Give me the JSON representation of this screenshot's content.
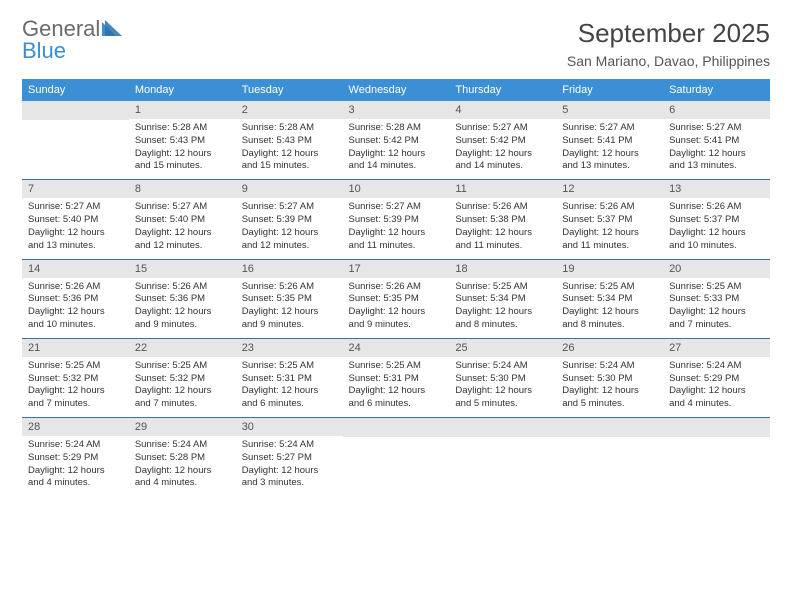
{
  "logo": {
    "general": "General",
    "blue": "Blue"
  },
  "title": "September 2025",
  "location": "San Mariano, Davao, Philippines",
  "colors": {
    "header_bg": "#3b8fd4",
    "header_text": "#ffffff",
    "daynum_bg": "#e6e6e6",
    "row_border": "#3b6fa8",
    "text": "#333333",
    "logo_gray": "#6b6b6b",
    "logo_blue": "#3b8fd4"
  },
  "weekdays": [
    "Sunday",
    "Monday",
    "Tuesday",
    "Wednesday",
    "Thursday",
    "Friday",
    "Saturday"
  ],
  "weeks": [
    [
      null,
      {
        "num": "1",
        "sunrise": "Sunrise: 5:28 AM",
        "sunset": "Sunset: 5:43 PM",
        "daylight": "Daylight: 12 hours and 15 minutes."
      },
      {
        "num": "2",
        "sunrise": "Sunrise: 5:28 AM",
        "sunset": "Sunset: 5:43 PM",
        "daylight": "Daylight: 12 hours and 15 minutes."
      },
      {
        "num": "3",
        "sunrise": "Sunrise: 5:28 AM",
        "sunset": "Sunset: 5:42 PM",
        "daylight": "Daylight: 12 hours and 14 minutes."
      },
      {
        "num": "4",
        "sunrise": "Sunrise: 5:27 AM",
        "sunset": "Sunset: 5:42 PM",
        "daylight": "Daylight: 12 hours and 14 minutes."
      },
      {
        "num": "5",
        "sunrise": "Sunrise: 5:27 AM",
        "sunset": "Sunset: 5:41 PM",
        "daylight": "Daylight: 12 hours and 13 minutes."
      },
      {
        "num": "6",
        "sunrise": "Sunrise: 5:27 AM",
        "sunset": "Sunset: 5:41 PM",
        "daylight": "Daylight: 12 hours and 13 minutes."
      }
    ],
    [
      {
        "num": "7",
        "sunrise": "Sunrise: 5:27 AM",
        "sunset": "Sunset: 5:40 PM",
        "daylight": "Daylight: 12 hours and 13 minutes."
      },
      {
        "num": "8",
        "sunrise": "Sunrise: 5:27 AM",
        "sunset": "Sunset: 5:40 PM",
        "daylight": "Daylight: 12 hours and 12 minutes."
      },
      {
        "num": "9",
        "sunrise": "Sunrise: 5:27 AM",
        "sunset": "Sunset: 5:39 PM",
        "daylight": "Daylight: 12 hours and 12 minutes."
      },
      {
        "num": "10",
        "sunrise": "Sunrise: 5:27 AM",
        "sunset": "Sunset: 5:39 PM",
        "daylight": "Daylight: 12 hours and 11 minutes."
      },
      {
        "num": "11",
        "sunrise": "Sunrise: 5:26 AM",
        "sunset": "Sunset: 5:38 PM",
        "daylight": "Daylight: 12 hours and 11 minutes."
      },
      {
        "num": "12",
        "sunrise": "Sunrise: 5:26 AM",
        "sunset": "Sunset: 5:37 PM",
        "daylight": "Daylight: 12 hours and 11 minutes."
      },
      {
        "num": "13",
        "sunrise": "Sunrise: 5:26 AM",
        "sunset": "Sunset: 5:37 PM",
        "daylight": "Daylight: 12 hours and 10 minutes."
      }
    ],
    [
      {
        "num": "14",
        "sunrise": "Sunrise: 5:26 AM",
        "sunset": "Sunset: 5:36 PM",
        "daylight": "Daylight: 12 hours and 10 minutes."
      },
      {
        "num": "15",
        "sunrise": "Sunrise: 5:26 AM",
        "sunset": "Sunset: 5:36 PM",
        "daylight": "Daylight: 12 hours and 9 minutes."
      },
      {
        "num": "16",
        "sunrise": "Sunrise: 5:26 AM",
        "sunset": "Sunset: 5:35 PM",
        "daylight": "Daylight: 12 hours and 9 minutes."
      },
      {
        "num": "17",
        "sunrise": "Sunrise: 5:26 AM",
        "sunset": "Sunset: 5:35 PM",
        "daylight": "Daylight: 12 hours and 9 minutes."
      },
      {
        "num": "18",
        "sunrise": "Sunrise: 5:25 AM",
        "sunset": "Sunset: 5:34 PM",
        "daylight": "Daylight: 12 hours and 8 minutes."
      },
      {
        "num": "19",
        "sunrise": "Sunrise: 5:25 AM",
        "sunset": "Sunset: 5:34 PM",
        "daylight": "Daylight: 12 hours and 8 minutes."
      },
      {
        "num": "20",
        "sunrise": "Sunrise: 5:25 AM",
        "sunset": "Sunset: 5:33 PM",
        "daylight": "Daylight: 12 hours and 7 minutes."
      }
    ],
    [
      {
        "num": "21",
        "sunrise": "Sunrise: 5:25 AM",
        "sunset": "Sunset: 5:32 PM",
        "daylight": "Daylight: 12 hours and 7 minutes."
      },
      {
        "num": "22",
        "sunrise": "Sunrise: 5:25 AM",
        "sunset": "Sunset: 5:32 PM",
        "daylight": "Daylight: 12 hours and 7 minutes."
      },
      {
        "num": "23",
        "sunrise": "Sunrise: 5:25 AM",
        "sunset": "Sunset: 5:31 PM",
        "daylight": "Daylight: 12 hours and 6 minutes."
      },
      {
        "num": "24",
        "sunrise": "Sunrise: 5:25 AM",
        "sunset": "Sunset: 5:31 PM",
        "daylight": "Daylight: 12 hours and 6 minutes."
      },
      {
        "num": "25",
        "sunrise": "Sunrise: 5:24 AM",
        "sunset": "Sunset: 5:30 PM",
        "daylight": "Daylight: 12 hours and 5 minutes."
      },
      {
        "num": "26",
        "sunrise": "Sunrise: 5:24 AM",
        "sunset": "Sunset: 5:30 PM",
        "daylight": "Daylight: 12 hours and 5 minutes."
      },
      {
        "num": "27",
        "sunrise": "Sunrise: 5:24 AM",
        "sunset": "Sunset: 5:29 PM",
        "daylight": "Daylight: 12 hours and 4 minutes."
      }
    ],
    [
      {
        "num": "28",
        "sunrise": "Sunrise: 5:24 AM",
        "sunset": "Sunset: 5:29 PM",
        "daylight": "Daylight: 12 hours and 4 minutes."
      },
      {
        "num": "29",
        "sunrise": "Sunrise: 5:24 AM",
        "sunset": "Sunset: 5:28 PM",
        "daylight": "Daylight: 12 hours and 4 minutes."
      },
      {
        "num": "30",
        "sunrise": "Sunrise: 5:24 AM",
        "sunset": "Sunset: 5:27 PM",
        "daylight": "Daylight: 12 hours and 3 minutes."
      },
      null,
      null,
      null,
      null
    ]
  ]
}
